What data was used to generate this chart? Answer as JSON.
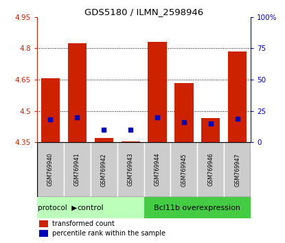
{
  "title": "GDS5180 / ILMN_2598946",
  "samples": [
    "GSM769940",
    "GSM769941",
    "GSM769942",
    "GSM769943",
    "GSM769944",
    "GSM769945",
    "GSM769946",
    "GSM769947"
  ],
  "red_values": [
    4.655,
    4.825,
    4.37,
    4.355,
    4.83,
    4.635,
    4.465,
    4.785
  ],
  "blue_values": [
    18,
    20,
    10,
    10,
    20,
    16,
    15,
    19
  ],
  "ylim_left": [
    4.35,
    4.95
  ],
  "ylim_right": [
    0,
    100
  ],
  "yticks_left": [
    4.35,
    4.5,
    4.65,
    4.8,
    4.95
  ],
  "yticks_right": [
    0,
    25,
    50,
    75,
    100
  ],
  "ytick_labels_right": [
    "0",
    "25",
    "50",
    "75",
    "100%"
  ],
  "bar_bottom": 4.35,
  "bar_width": 0.7,
  "red_color": "#cc2200",
  "blue_color": "#0000bb",
  "control_label": "control",
  "bcl_label": "Bcl11b overexpression",
  "protocol_label": "protocol",
  "legend_red": "transformed count",
  "legend_blue": "percentile rank within the sample",
  "control_bg": "#bbffbb",
  "bcl_bg": "#44cc44",
  "header_bg": "#cccccc",
  "plot_bg": "#ffffff",
  "tick_color_left": "#cc2200",
  "tick_color_right": "#0000bb",
  "grid_yticks": [
    4.5,
    4.65,
    4.8
  ]
}
